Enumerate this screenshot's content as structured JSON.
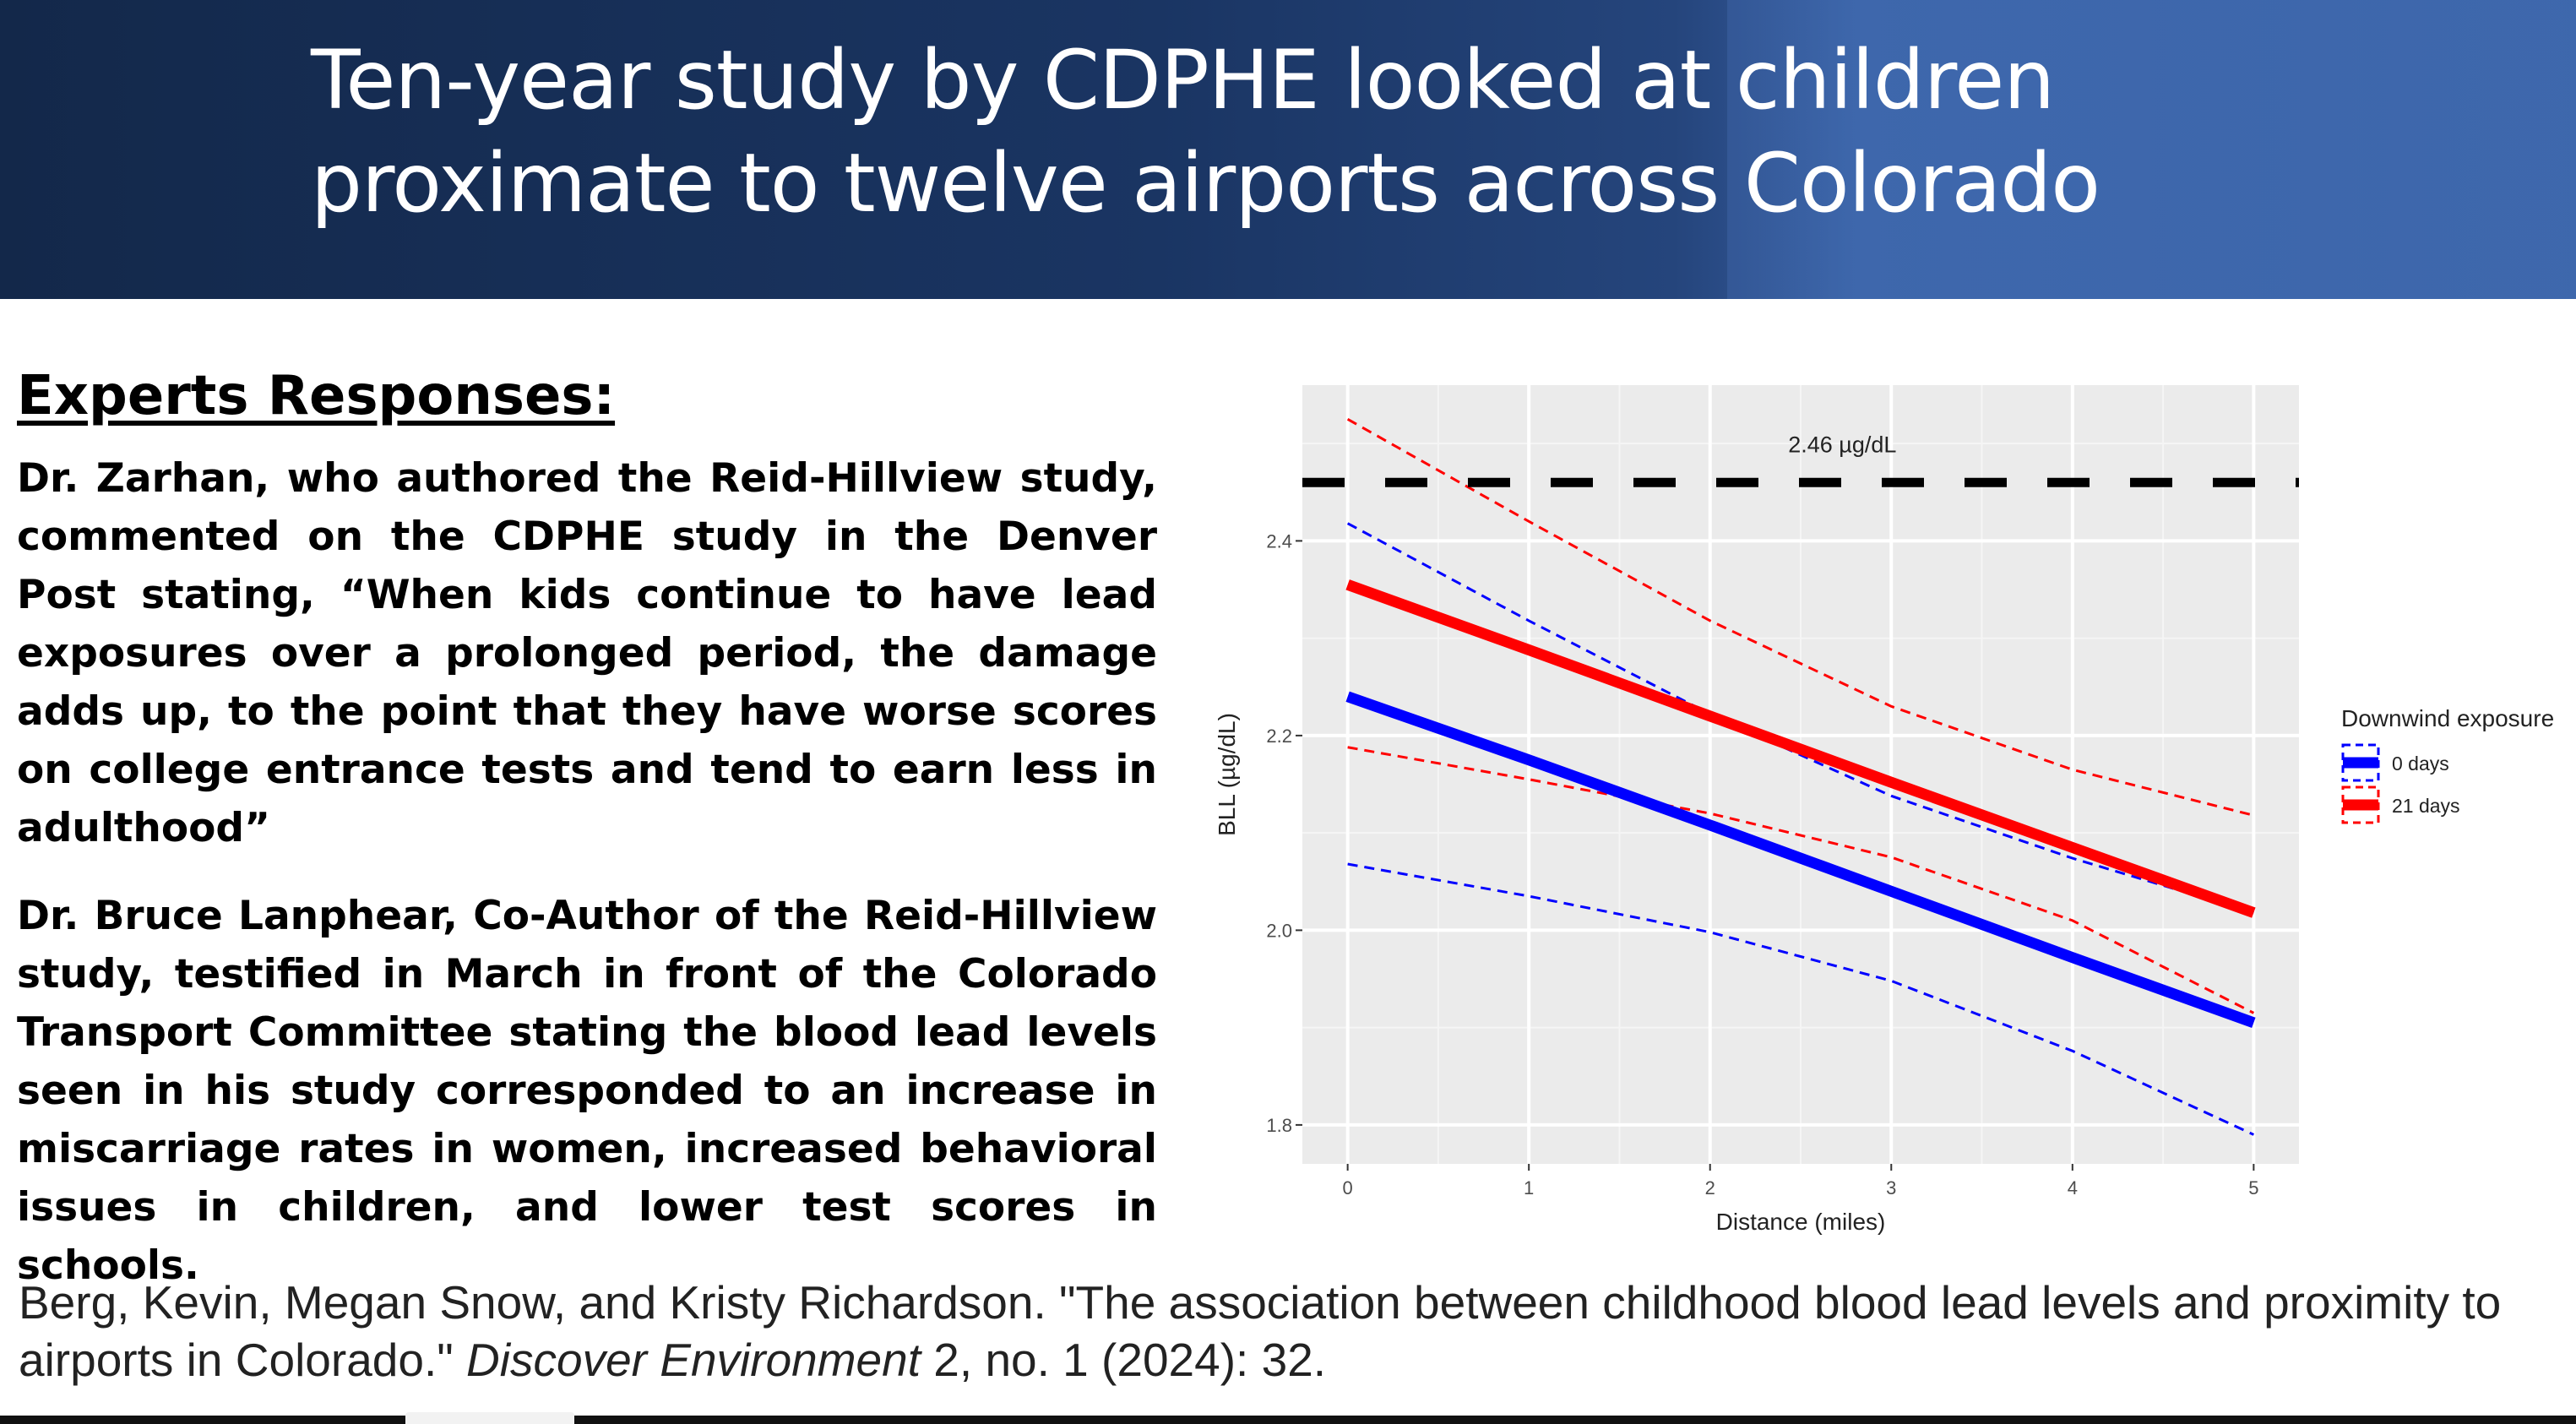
{
  "slide": {
    "title_line1": "Ten-year study by CDPHE looked at children",
    "title_line2": "proximate to twelve airports across Colorado",
    "heading": "Experts Responses:",
    "paragraph1": "Dr. Zarhan, who authored the Reid-Hillview study, commented on the CDPHE study in the Denver Post stating, “When kids continue to have lead exposures over a prolonged period, the damage adds up, to the point that they have worse scores on college entrance tests and tend to earn less in adulthood”",
    "paragraph2": "Dr. Bruce Lanphear, Co-Author of the Reid-Hillview study, testified in March in front of the Colorado Transport Committee stating the blood lead levels seen in his study corresponded to an increase in miscarriage rates in women, increased behavioral issues in children, and lower test scores in schools.",
    "citation_part1": "Berg, Kevin, Megan Snow, and Kristy Richardson. \"The association between childhood blood lead levels and proximity to airports in Colorado.\" ",
    "citation_journal": "Discover Environment",
    "citation_part2": " 2, no. 1 (2024): 32."
  },
  "colors": {
    "banner": "#1a3563",
    "series_0_days": "#0000ff",
    "series_21_days": "#ff0000",
    "plot_background": "#ebebeb",
    "reference_line": "#000000"
  },
  "chart_data": {
    "type": "line",
    "xlabel": "Distance (miles)",
    "ylabel": "BLL (µg/dL)",
    "xlim": [
      -0.25,
      5.25
    ],
    "ylim": [
      1.76,
      2.56
    ],
    "x_ticks": [
      0,
      1,
      2,
      3,
      4,
      5
    ],
    "y_ticks": [
      1.8,
      2.0,
      2.2,
      2.4
    ],
    "y_tick_labels": [
      "1.8",
      "2.0",
      "2.2",
      "2.4"
    ],
    "grid": true,
    "reference_line": {
      "y": 2.46,
      "label": "2.46 µg/dL",
      "style": "dashed"
    },
    "legend": {
      "title": "Downwind exposure",
      "placement": "right"
    },
    "series": [
      {
        "name": "0 days",
        "color": "#0000ff",
        "x": [
          0,
          1,
          2,
          3,
          4,
          5
        ],
        "values": [
          2.24,
          2.175,
          2.108,
          2.04,
          1.972,
          1.905
        ],
        "ci_lower": [
          2.068,
          2.035,
          1.998,
          1.948,
          1.876,
          1.79
        ],
        "ci_upper": [
          2.418,
          2.318,
          2.222,
          2.138,
          2.074,
          2.018
        ]
      },
      {
        "name": "21 days",
        "color": "#ff0000",
        "x": [
          0,
          1,
          2,
          3,
          4,
          5
        ],
        "values": [
          2.355,
          2.288,
          2.22,
          2.152,
          2.085,
          2.018
        ],
        "ci_lower": [
          2.188,
          2.155,
          2.12,
          2.075,
          2.01,
          1.915
        ],
        "ci_upper": [
          2.525,
          2.42,
          2.318,
          2.23,
          2.165,
          2.118
        ]
      }
    ]
  }
}
